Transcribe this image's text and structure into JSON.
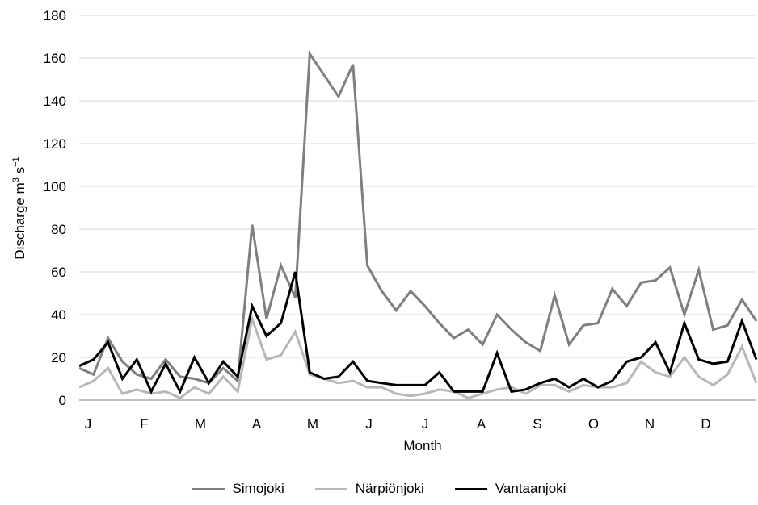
{
  "chart_data": {
    "type": "line",
    "title": "",
    "xlabel": "Month",
    "ylabel_main": "Discharge m",
    "ylabel_sup1": "3",
    "ylabel_mid": " s",
    "ylabel_sup2": "−1",
    "ylim": [
      0,
      180
    ],
    "yticks": [
      0,
      20,
      40,
      60,
      80,
      100,
      120,
      140,
      160,
      180
    ],
    "month_labels": [
      "J",
      "F",
      "M",
      "A",
      "M",
      "J",
      "J",
      "A",
      "S",
      "O",
      "N",
      "D"
    ],
    "grid": "horizontal",
    "legend_position": "bottom-center",
    "points_per_series": 48,
    "series": [
      {
        "name": "Simojoki",
        "color": "#7f7f7f",
        "width": 3,
        "values": [
          15,
          12,
          29,
          18,
          12,
          10,
          19,
          11,
          10,
          8,
          15,
          9,
          82,
          38,
          63,
          48,
          162,
          152,
          142,
          157,
          63,
          51,
          42,
          51,
          44,
          36,
          29,
          33,
          26,
          40,
          33,
          27,
          23,
          49,
          26,
          35,
          36,
          52,
          44,
          55,
          56,
          62,
          40,
          61,
          33,
          35,
          47,
          37
        ]
      },
      {
        "name": "Närpiönjoki",
        "color": "#b7b7b7",
        "width": 3,
        "values": [
          6,
          9,
          15,
          3,
          5,
          3,
          4,
          1,
          6,
          3,
          11,
          4,
          38,
          19,
          21,
          32,
          12,
          10,
          8,
          9,
          6,
          6,
          3,
          2,
          3,
          5,
          4,
          1,
          3,
          5,
          6,
          3,
          7,
          7,
          4,
          7,
          6,
          6,
          8,
          18,
          13,
          11,
          20,
          11,
          7,
          12,
          25,
          8
        ]
      },
      {
        "name": "Vantaanjoki",
        "color": "#000000",
        "width": 3,
        "values": [
          16,
          19,
          27,
          10,
          19,
          4,
          17,
          4,
          20,
          8,
          18,
          11,
          44,
          30,
          36,
          60,
          13,
          10,
          11,
          18,
          9,
          8,
          7,
          7,
          7,
          13,
          4,
          4,
          4,
          22,
          4,
          5,
          8,
          10,
          6,
          10,
          6,
          9,
          18,
          20,
          27,
          13,
          36,
          19,
          17,
          18,
          37,
          19
        ]
      }
    ]
  }
}
